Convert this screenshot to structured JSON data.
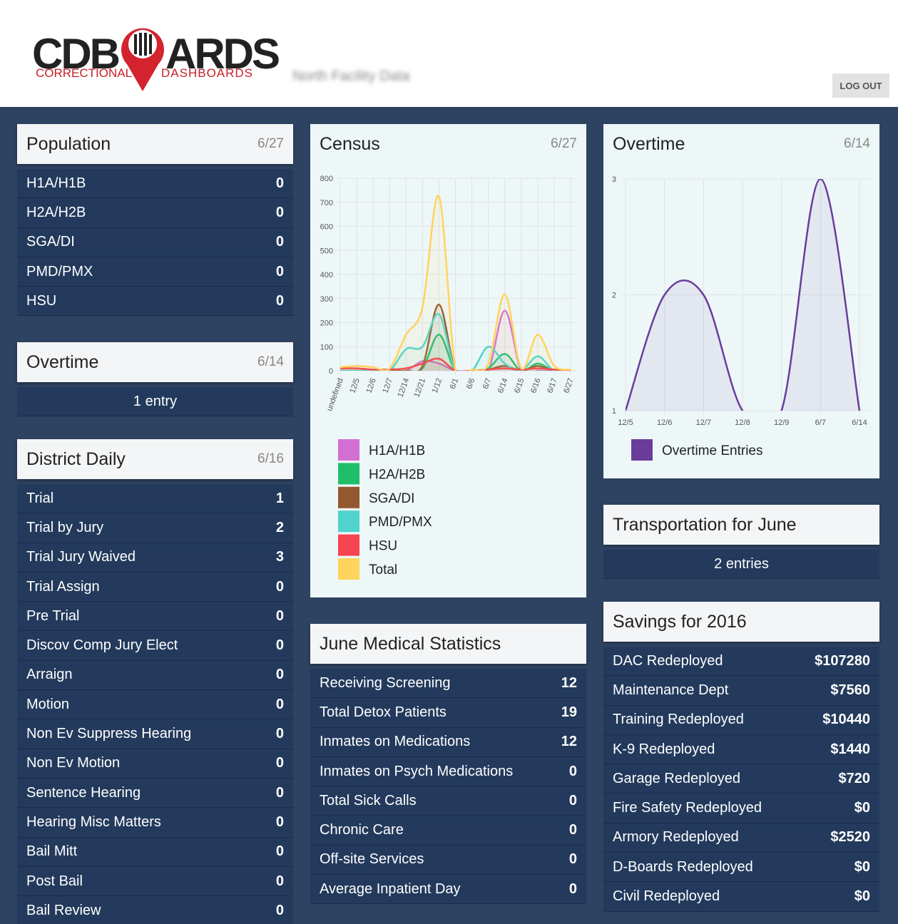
{
  "header": {
    "logo": {
      "left": "CDB",
      "right": "ARDS",
      "tagline_left": "CORRECTIONAL",
      "tagline_right": "DASHBOARDS"
    },
    "facility": "North Facility Data",
    "logout": "LOG OUT"
  },
  "population": {
    "title": "Population",
    "date": "6/27",
    "rows": [
      [
        "H1A/H1B",
        0
      ],
      [
        "H2A/H2B",
        0
      ],
      [
        "SGA/DI",
        0
      ],
      [
        "PMD/PMX",
        0
      ],
      [
        "HSU",
        0
      ]
    ]
  },
  "overtime": {
    "title": "Overtime",
    "date": "6/14",
    "text": "1 entry"
  },
  "district_daily": {
    "title": "District Daily",
    "date": "6/16",
    "rows": [
      [
        "Trial",
        1
      ],
      [
        "Trial by Jury",
        2
      ],
      [
        "Trial Jury Waived",
        3
      ],
      [
        "Trial Assign",
        0
      ],
      [
        "Pre Trial",
        0
      ],
      [
        "Discov Comp Jury Elect",
        0
      ],
      [
        "Arraign",
        0
      ],
      [
        "Motion",
        0
      ],
      [
        "Non Ev Suppress Hearing",
        0
      ],
      [
        "Non Ev Motion",
        0
      ],
      [
        "Sentence Hearing",
        0
      ],
      [
        "Hearing Misc Matters",
        0
      ],
      [
        "Bail Mitt",
        0
      ],
      [
        "Post Bail",
        0
      ],
      [
        "Bail Review",
        0
      ]
    ]
  },
  "medical": {
    "title": "June Medical Statistics",
    "rows": [
      [
        "Receiving Screening",
        12
      ],
      [
        "Total Detox Patients",
        19
      ],
      [
        "Inmates on Medications",
        12
      ],
      [
        "Inmates on Psych Medications",
        0
      ],
      [
        "Total Sick Calls",
        0
      ],
      [
        "Chronic Care",
        0
      ],
      [
        "Off-site Services",
        0
      ],
      [
        "Average Inpatient Day",
        0
      ]
    ]
  },
  "transportation": {
    "title": "Transportation for June",
    "text": "2 entries"
  },
  "savings": {
    "title": "Savings for 2016",
    "rows": [
      [
        "DAC Redeployed",
        "$107280"
      ],
      [
        "Maintenance Dept",
        "$7560"
      ],
      [
        "Training Redeployed",
        "$10440"
      ],
      [
        "K-9 Redeployed",
        "$1440"
      ],
      [
        "Garage Redeployed",
        "$720"
      ],
      [
        "Fire Safety Redeployed",
        "$0"
      ],
      [
        "Armory Redeployed",
        "$2520"
      ],
      [
        "D-Boards Redeployed",
        "$0"
      ],
      [
        "Civil Redeployed",
        "$0"
      ]
    ]
  },
  "chart_data": [
    {
      "type": "line",
      "title": "Census",
      "subtitle": "6/27",
      "categories": [
        "undefined",
        "12/5",
        "12/6",
        "12/7",
        "12/14",
        "12/21",
        "1/12",
        "6/1",
        "6/6",
        "6/7",
        "6/14",
        "6/15",
        "6/16",
        "6/17",
        "6/27"
      ],
      "series": [
        {
          "name": "H1A/H1B",
          "color": "#d36fd3",
          "values": [
            0,
            0,
            0,
            0,
            0,
            40,
            30,
            0,
            0,
            0,
            250,
            0,
            0,
            0,
            0
          ]
        },
        {
          "name": "H2A/H2B",
          "color": "#1fbf6a",
          "values": [
            0,
            0,
            0,
            0,
            0,
            10,
            150,
            0,
            0,
            10,
            70,
            0,
            30,
            0,
            0
          ]
        },
        {
          "name": "SGA/DI",
          "color": "#93582e",
          "values": [
            0,
            0,
            0,
            0,
            0,
            20,
            275,
            0,
            0,
            5,
            20,
            0,
            20,
            0,
            0
          ]
        },
        {
          "name": "PMD/PMX",
          "color": "#4fd3cc",
          "values": [
            0,
            0,
            0,
            0,
            90,
            100,
            235,
            0,
            0,
            100,
            30,
            0,
            60,
            0,
            0
          ]
        },
        {
          "name": "HSU",
          "color": "#f5434f",
          "values": [
            10,
            10,
            5,
            5,
            10,
            30,
            50,
            0,
            0,
            5,
            10,
            5,
            10,
            5,
            0
          ]
        },
        {
          "name": "Total",
          "color": "#ffd45c",
          "values": [
            15,
            20,
            15,
            10,
            150,
            265,
            725,
            5,
            5,
            30,
            318,
            10,
            150,
            20,
            5
          ]
        }
      ],
      "ylim": [
        0,
        800
      ],
      "yticks": [
        0,
        100,
        200,
        300,
        400,
        500,
        600,
        700,
        800
      ],
      "grid": true,
      "legend": "bottom"
    },
    {
      "type": "line",
      "title": "Overtime",
      "subtitle": "6/14",
      "categories": [
        "12/5",
        "12/6",
        "12/7",
        "12/8",
        "12/9",
        "6/7",
        "6/14"
      ],
      "series": [
        {
          "name": "Overtime Entries",
          "color": "#6a3d9a",
          "values": [
            1,
            2,
            2,
            1,
            1,
            3,
            1
          ]
        }
      ],
      "ylim": [
        1,
        3
      ],
      "yticks": [
        1,
        2,
        3
      ],
      "grid": true,
      "legend": "bottom"
    }
  ]
}
